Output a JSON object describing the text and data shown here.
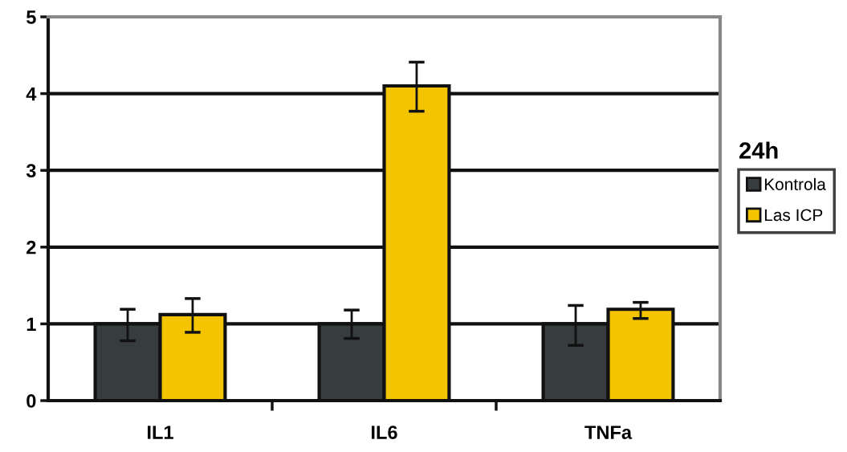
{
  "chart_data": {
    "type": "bar",
    "categories": [
      "IL1",
      "IL6",
      "TNFa"
    ],
    "series": [
      {
        "name": "Kontrola",
        "color": "#373c3f",
        "values": [
          1.0,
          1.0,
          1.0
        ],
        "errors": [
          [
            0.78,
            1.19
          ],
          [
            0.81,
            1.18
          ],
          [
            0.72,
            1.24
          ]
        ]
      },
      {
        "name": "Las ICP",
        "color": "#f5c400",
        "values": [
          1.12,
          4.1,
          1.19
        ],
        "errors": [
          [
            0.89,
            1.33
          ],
          [
            3.77,
            4.41
          ],
          [
            1.07,
            1.28
          ]
        ]
      }
    ],
    "ylim": [
      0,
      5
    ],
    "yticks": [
      0,
      1,
      2,
      3,
      4,
      5
    ],
    "grid": "y",
    "legend": "right",
    "legend_title": "24h"
  }
}
